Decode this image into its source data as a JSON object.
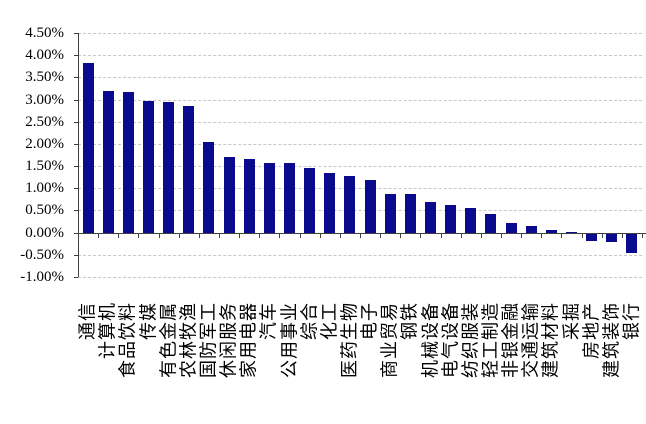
{
  "chart_data": {
    "type": "bar",
    "title": "",
    "legend": "none",
    "grid": "horizontal-dashed",
    "value_unit": "%",
    "ylim": [
      -1.0,
      4.5
    ],
    "ytick_step": 0.5,
    "ytick_labels": [
      "4.50%",
      "4.00%",
      "3.50%",
      "3.00%",
      "2.50%",
      "2.00%",
      "1.50%",
      "1.00%",
      "0.50%",
      "0.00%",
      "-0.50%",
      "-1.00%"
    ],
    "categories": [
      "通信",
      "计算机",
      "食品饮料",
      "传媒",
      "有色金属",
      "农林牧渔",
      "国防军工",
      "休闲服务",
      "家用电器",
      "汽车",
      "公用事业",
      "综合",
      "化工",
      "医药生物",
      "电子",
      "商业贸易",
      "钢铁",
      "机械设备",
      "电气设备",
      "纺织服装",
      "轻工制造",
      "非银金融",
      "交通运输",
      "建筑材料",
      "采掘",
      "房地产",
      "建筑装饰",
      "银行"
    ],
    "values": [
      3.83,
      3.19,
      3.16,
      2.96,
      2.94,
      2.86,
      2.04,
      1.7,
      1.66,
      1.57,
      1.56,
      1.46,
      1.34,
      1.27,
      1.19,
      0.87,
      0.87,
      0.68,
      0.63,
      0.55,
      0.42,
      0.22,
      0.14,
      0.06,
      0.01,
      -0.16,
      -0.19,
      -0.43
    ],
    "colors": {
      "bar": "#0a0a8e",
      "gridline": "#c8c8c8",
      "axis": "#404040",
      "background": "#ffffff",
      "text": "#000000"
    }
  }
}
